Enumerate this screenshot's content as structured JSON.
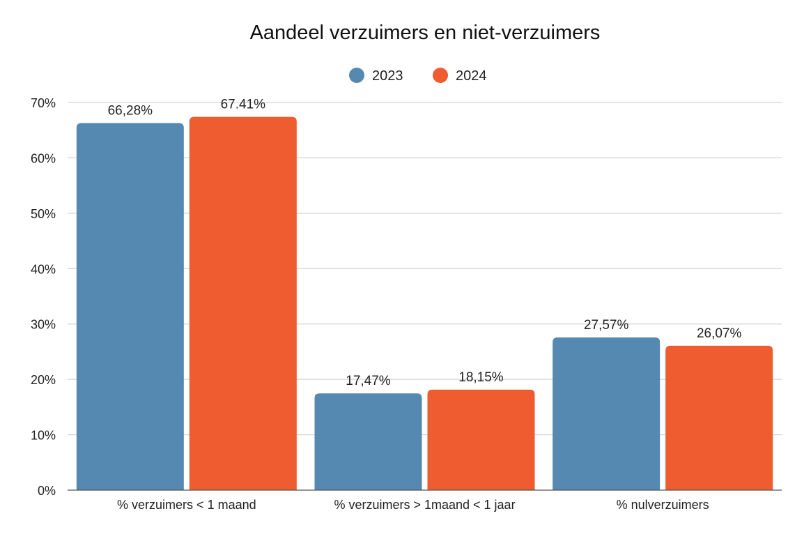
{
  "chart_data": {
    "type": "bar",
    "title": "Aandeel verzuimers en niet-verzuimers",
    "categories": [
      "% verzuimers < 1 maand",
      "% verzuimers > 1maand < 1 jaar",
      "% nulverzuimers"
    ],
    "series": [
      {
        "name": "2023",
        "color": "#5589b2",
        "values": [
          66.28,
          17.47,
          27.57
        ],
        "labels": [
          "66,28%",
          "17,47%",
          "27,57%"
        ]
      },
      {
        "name": "2024",
        "color": "#ee5c30",
        "values": [
          67.41,
          18.15,
          26.07
        ],
        "labels": [
          "67.41%",
          "18,15%",
          "26,07%"
        ]
      }
    ],
    "ylim": [
      0,
      70
    ],
    "yticks": [
      0,
      10,
      20,
      30,
      40,
      50,
      60,
      70
    ],
    "ytick_labels": [
      "0%",
      "10%",
      "20%",
      "30%",
      "40%",
      "50%",
      "60%",
      "70%"
    ],
    "grid": true,
    "legend_position": "top-center"
  }
}
